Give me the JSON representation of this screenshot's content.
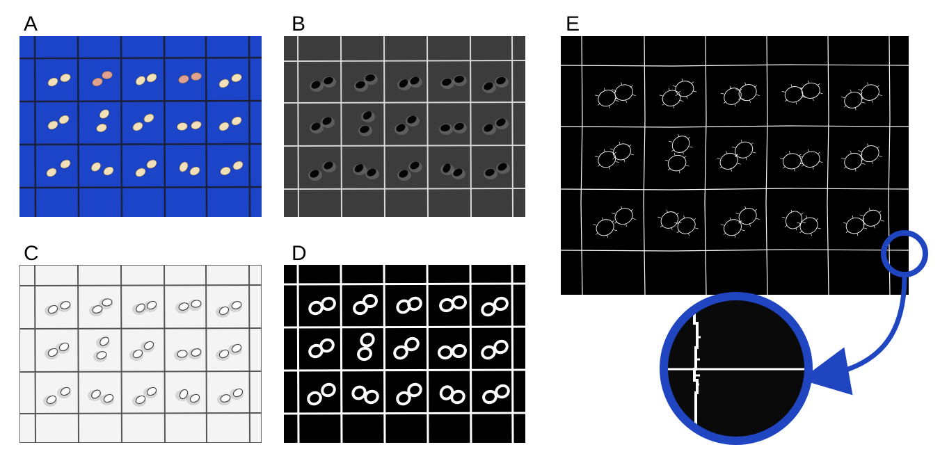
{
  "figure": {
    "panels": [
      {
        "label": "A",
        "kind": "photo-blue-grid"
      },
      {
        "label": "B",
        "kind": "grayscale"
      },
      {
        "label": "C",
        "kind": "inverted-grayscale"
      },
      {
        "label": "D",
        "kind": "binary-threshold"
      },
      {
        "label": "E",
        "kind": "edge-detection"
      }
    ],
    "grid": {
      "rows": 3,
      "cols": 5
    },
    "seed_pairs_per_cell": 2
  },
  "colors": {
    "blue_background": "#1c44c8",
    "seed": "#f2e0b8",
    "seed_pink": "#e0a090",
    "gray_background": "#3c3c3c",
    "zoom_ring": "#1f45c0",
    "black": "#000000",
    "white": "#ffffff"
  },
  "icons": {
    "callout": "curved-arrow-icon",
    "zoom": "magnifier-circle-icon"
  }
}
